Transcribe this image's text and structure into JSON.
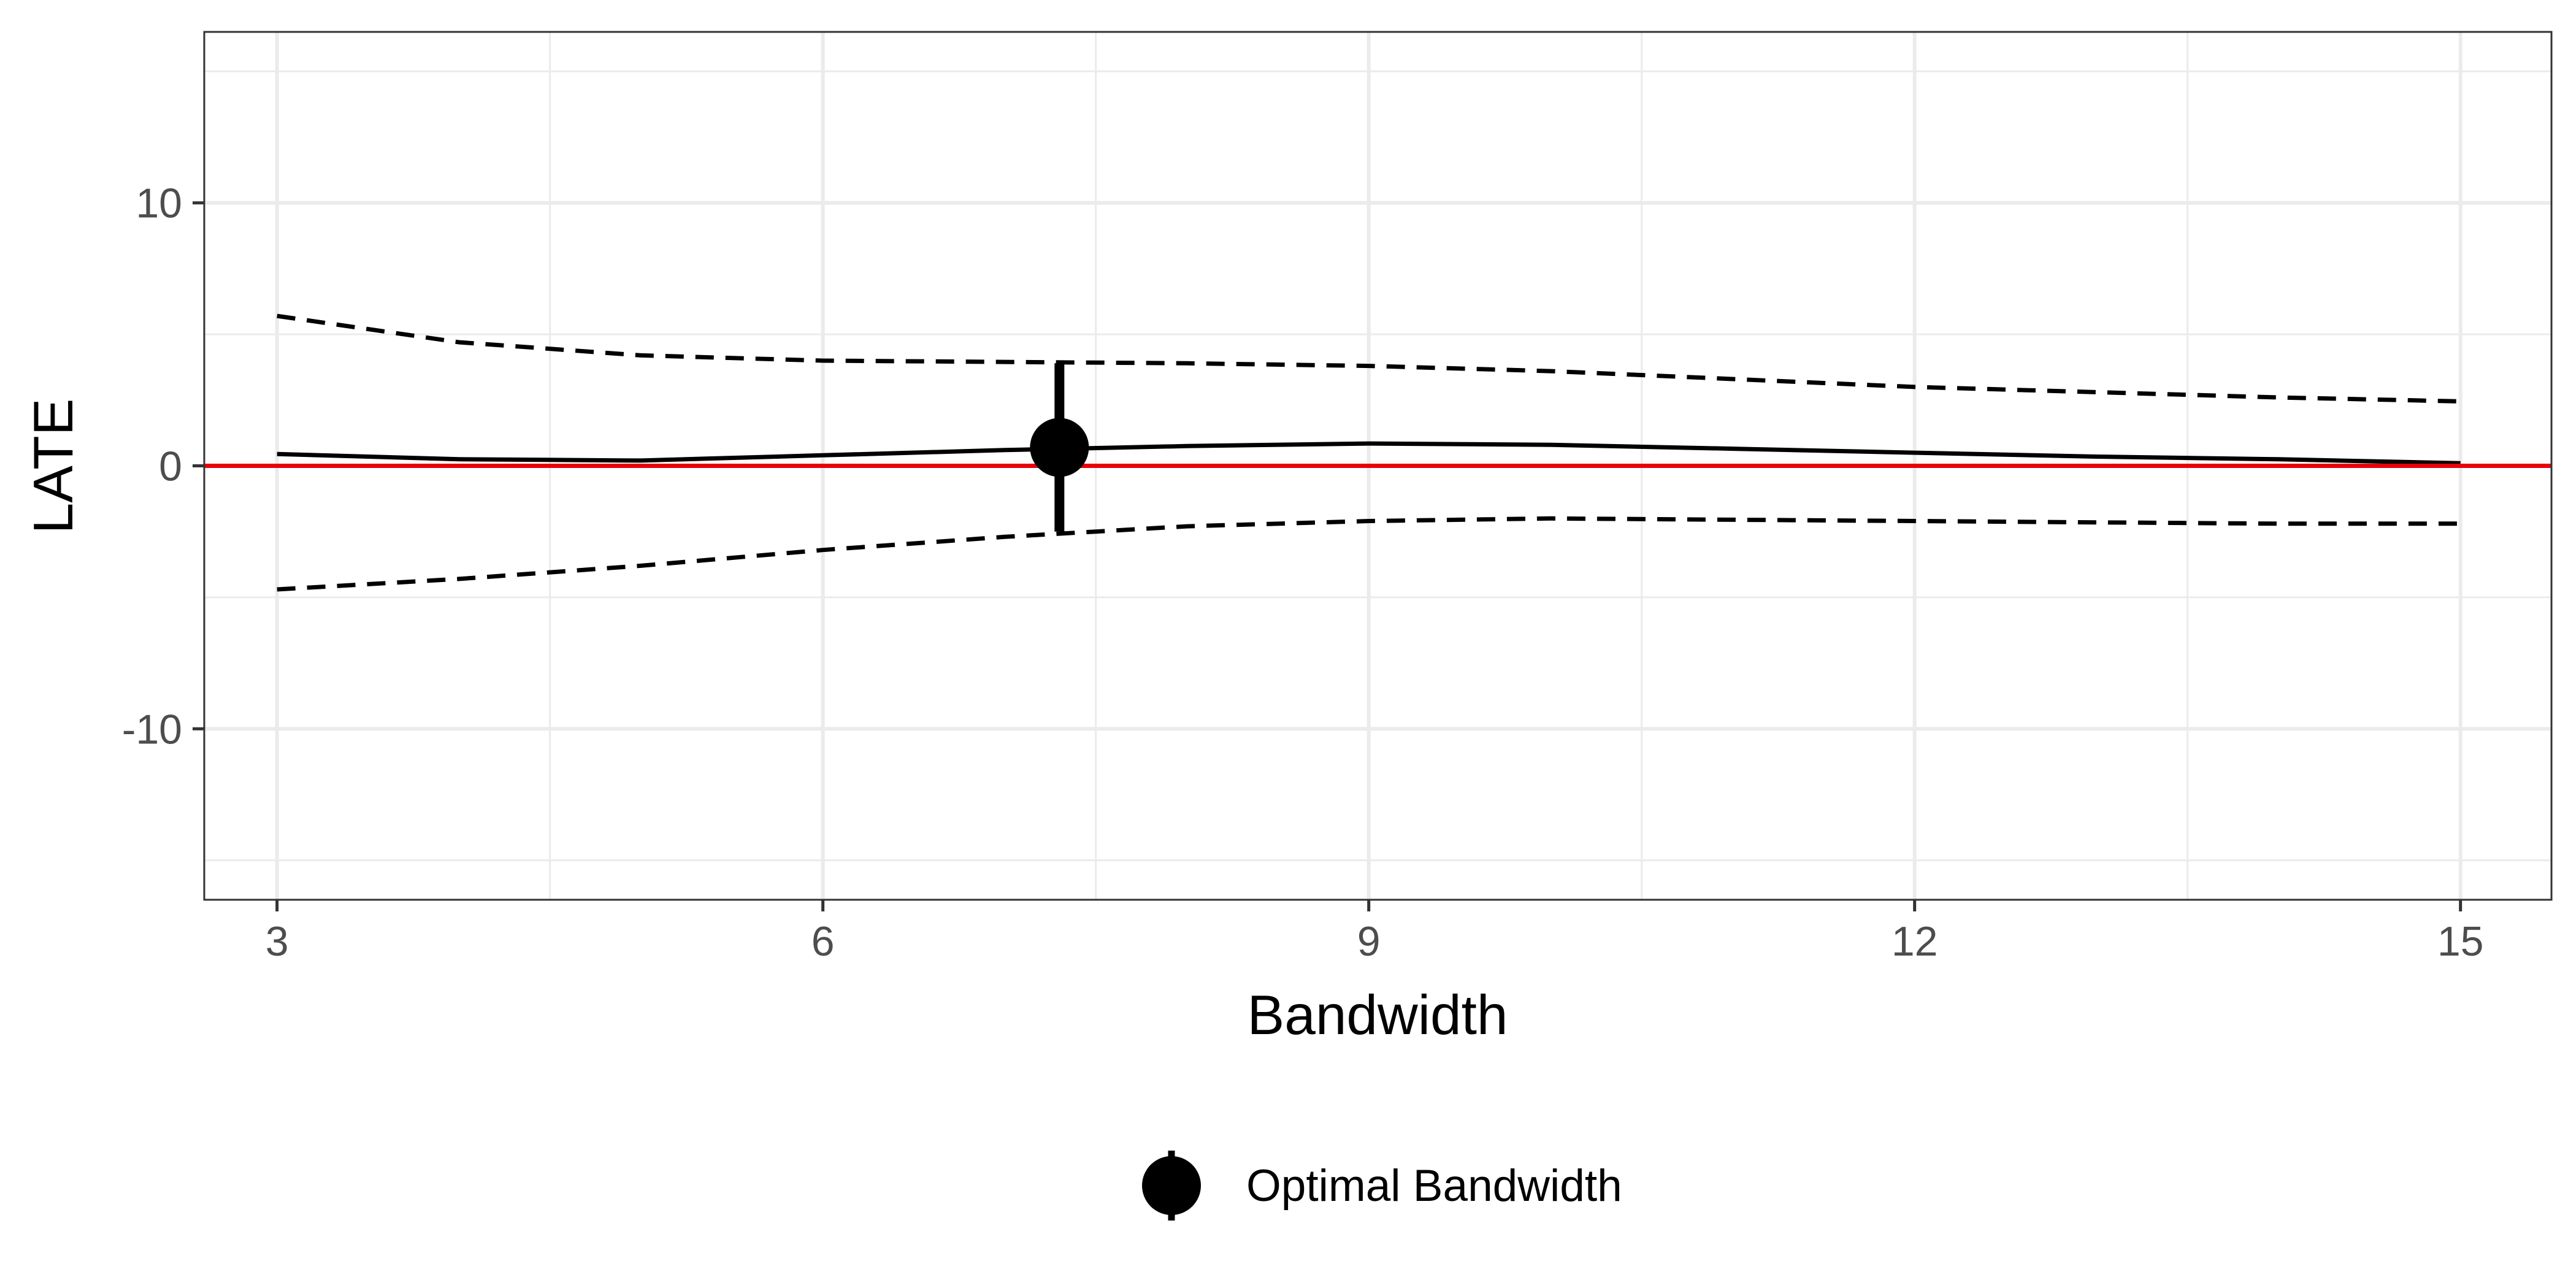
{
  "chart_data": {
    "type": "line",
    "title": "",
    "xlabel": "Bandwidth",
    "ylabel": "LATE",
    "xlim": [
      2.6,
      15.5
    ],
    "ylim": [
      -16.5,
      16.5
    ],
    "x_ticks": [
      3,
      6,
      9,
      12,
      15
    ],
    "y_ticks": [
      -10,
      0,
      10
    ],
    "x_minor_gridlines": [
      4.5,
      7.5,
      10.5,
      13.5
    ],
    "y_minor_gridlines": [
      -15,
      -5,
      5,
      15
    ],
    "grid": true,
    "legend_position": "bottom",
    "series": [
      {
        "style": "solid",
        "color": "#000000",
        "x": [
          3,
          4,
          5,
          6,
          7,
          8,
          9,
          10,
          11,
          12,
          13,
          14,
          15
        ],
        "y": [
          0.45,
          0.25,
          0.2,
          0.4,
          0.6,
          0.75,
          0.85,
          0.8,
          0.65,
          0.5,
          0.35,
          0.25,
          0.1
        ]
      },
      {
        "style": "dashed",
        "color": "#000000",
        "x": [
          3,
          4,
          5,
          6,
          7,
          8,
          9,
          10,
          11,
          12,
          13,
          14,
          15
        ],
        "y": [
          5.7,
          4.7,
          4.2,
          4.0,
          3.95,
          3.9,
          3.8,
          3.6,
          3.3,
          3.0,
          2.8,
          2.6,
          2.45
        ]
      },
      {
        "style": "dashed",
        "color": "#000000",
        "x": [
          3,
          4,
          5,
          6,
          7,
          8,
          9,
          10,
          11,
          12,
          13,
          14,
          15
        ],
        "y": [
          -4.7,
          -4.3,
          -3.8,
          -3.2,
          -2.7,
          -2.3,
          -2.1,
          -2.0,
          -2.05,
          -2.1,
          -2.15,
          -2.2,
          -2.2
        ]
      }
    ],
    "reference_line": {
      "y": 0,
      "color": "#e8000b"
    },
    "optimal_point": {
      "label": "Optimal Bandwidth",
      "x": 7.3,
      "y": 0.7,
      "ci_low": -2.5,
      "ci_high": 3.9
    }
  }
}
